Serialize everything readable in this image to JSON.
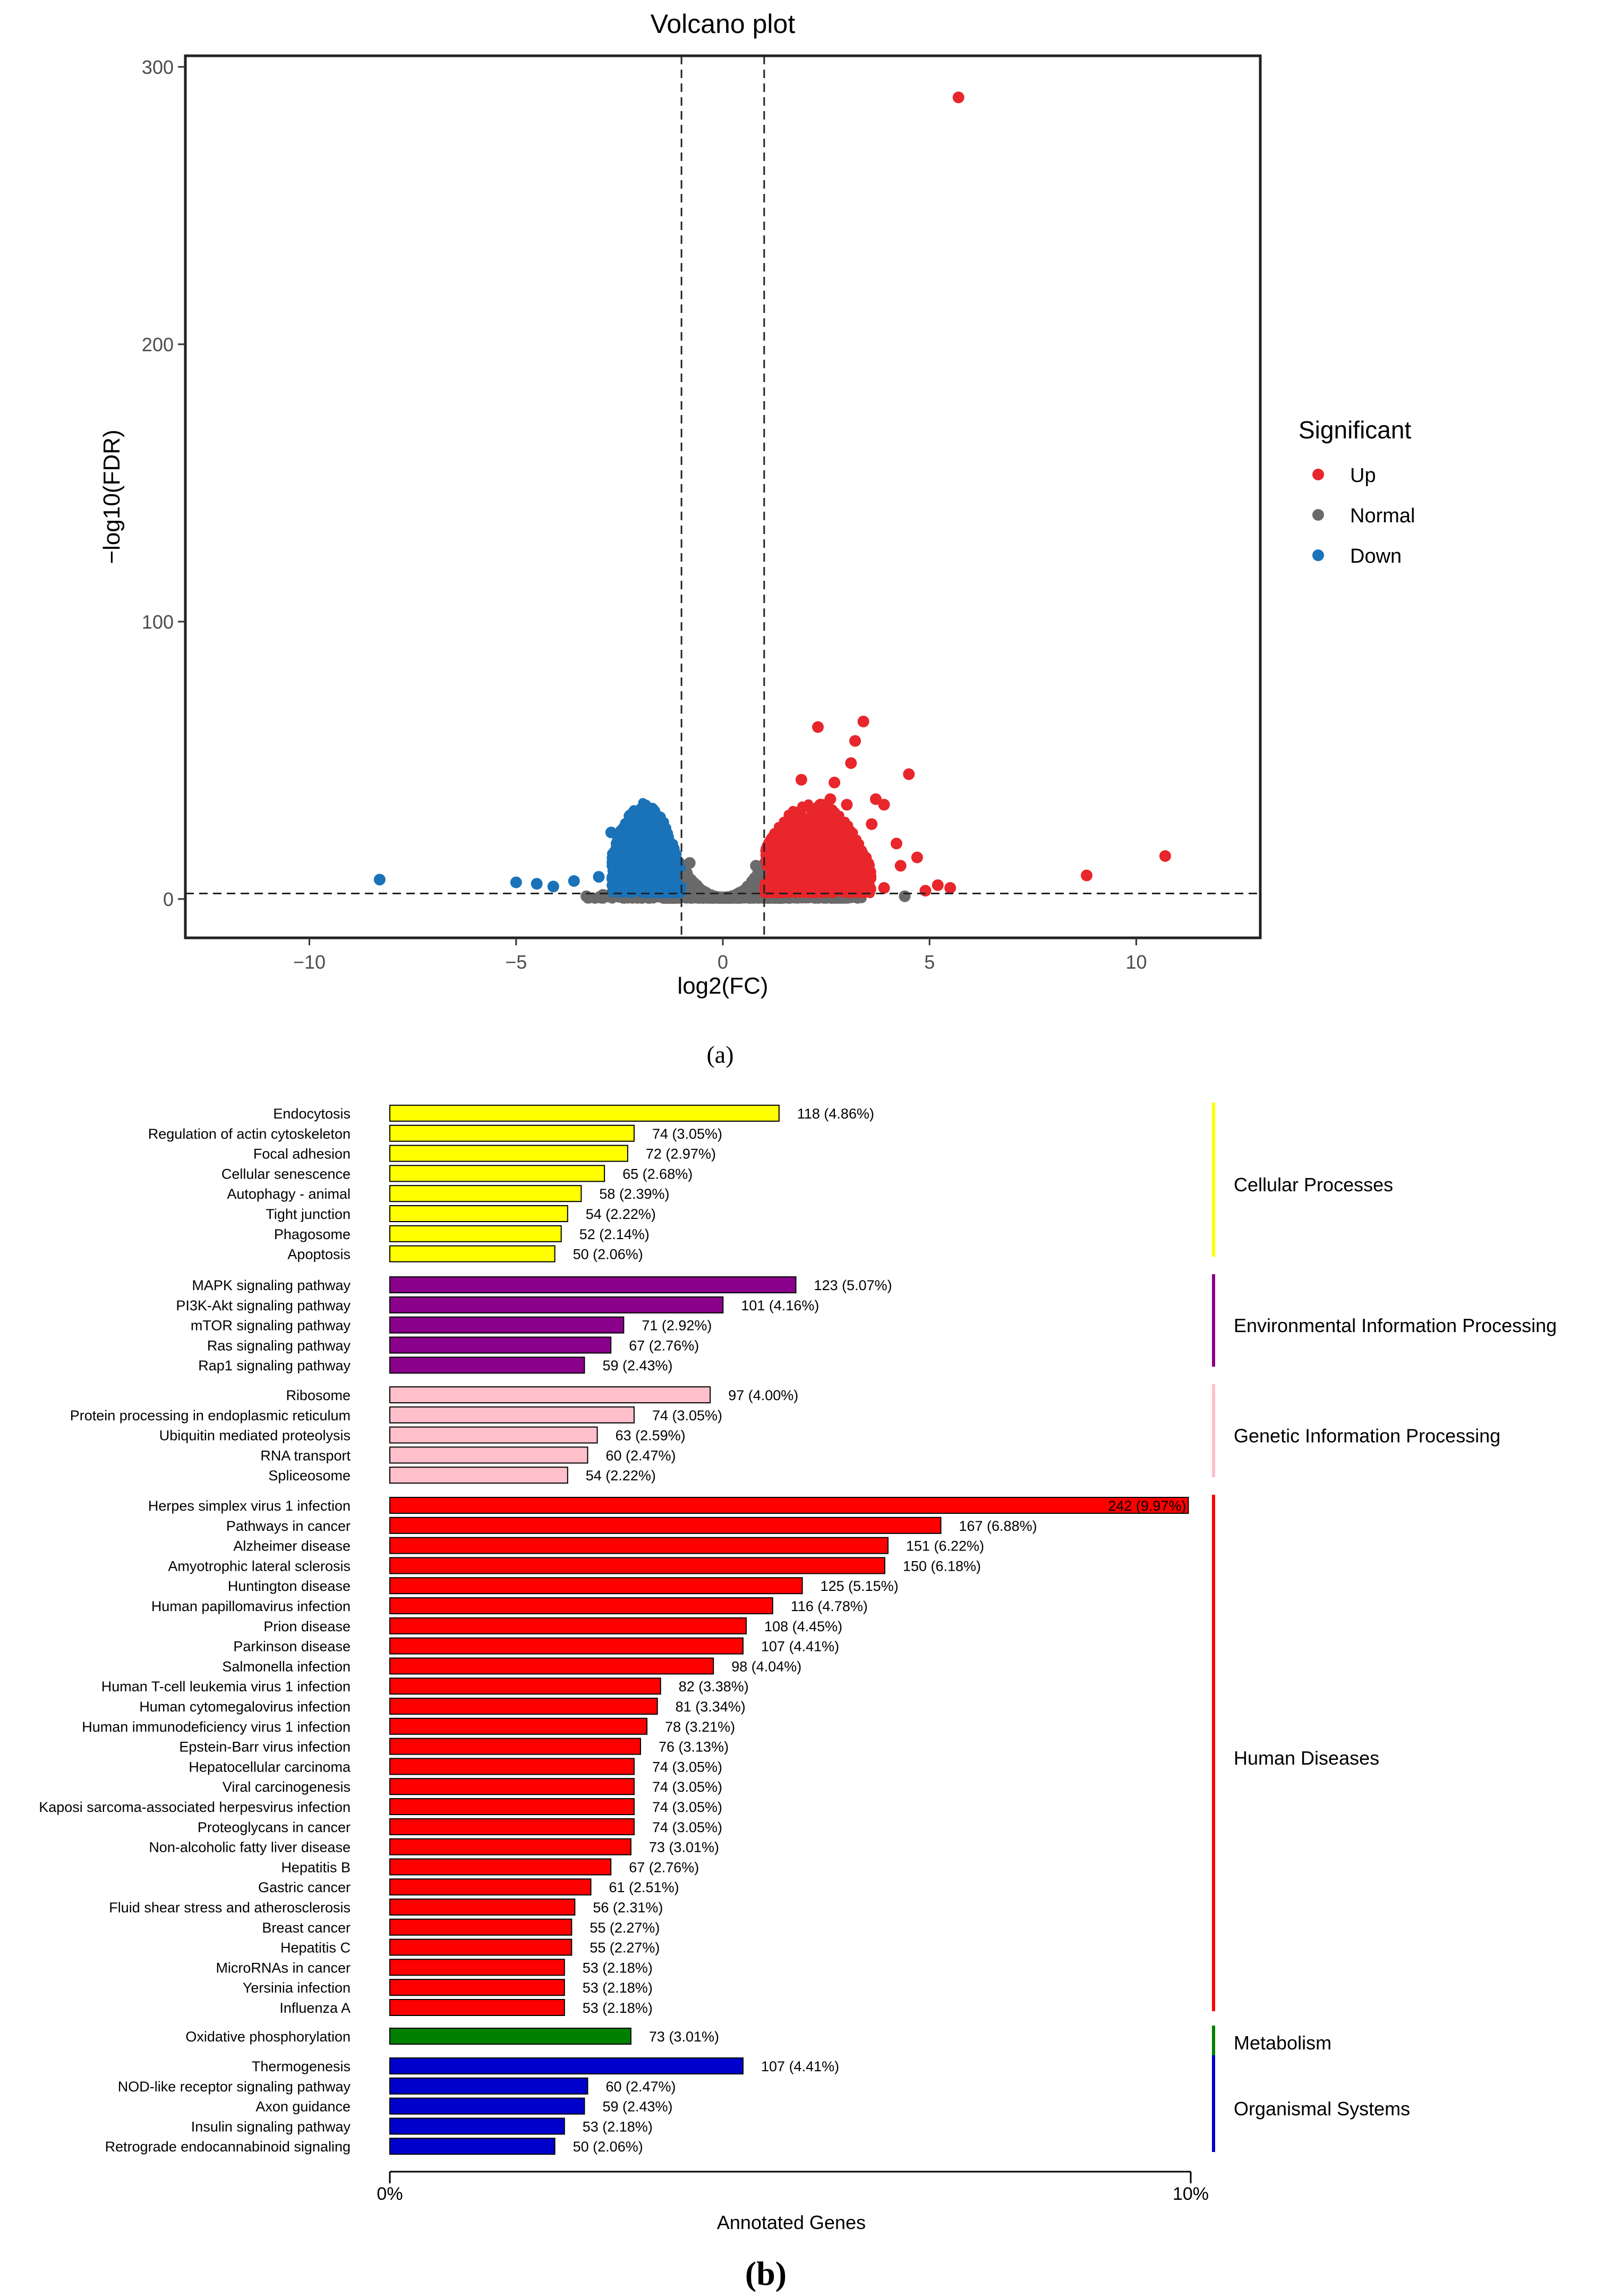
{
  "panel_a_label": "(a)",
  "panel_b_label": "(b)",
  "colors": {
    "up": "#e8262b",
    "normal": "#6a6a6a",
    "down": "#1a72b8",
    "Cellular Processes": "#ffff00",
    "Environmental Information Processing": "#8b008b",
    "Genetic Information Processing": "#ffc0cb",
    "Human Diseases": "#ff0000",
    "Metabolism": "#008000",
    "Organismal Systems": "#0000cd"
  },
  "chart_data": [
    {
      "type": "scatter",
      "title": "Volcano plot",
      "xlabel": "log2(FC)",
      "ylabel": "−log10(FDR)",
      "xlim": [
        -13,
        13
      ],
      "ylim": [
        -14,
        304
      ],
      "xticks": [
        -10,
        -5,
        0,
        5,
        10
      ],
      "xtick_labels": [
        "−10",
        "−5",
        "0",
        "5",
        "10"
      ],
      "yticks": [
        0,
        100,
        200,
        300
      ],
      "ytick_labels": [
        "0",
        "100",
        "200",
        "300"
      ],
      "grid": false,
      "thresholds": {
        "log2fc": [
          -1,
          1
        ],
        "neg_log10_fdr": 2
      },
      "legend": {
        "title": "Significant",
        "position": "right",
        "entries": [
          "Up",
          "Normal",
          "Down"
        ]
      },
      "series": [
        {
          "name": "Up",
          "points": [
            [
              5.7,
              289
            ],
            [
              10.7,
              15.5
            ],
            [
              8.8,
              8.5
            ],
            [
              3.4,
              64
            ],
            [
              2.3,
              62
            ],
            [
              3.2,
              57
            ],
            [
              4.5,
              45
            ],
            [
              3.1,
              49
            ],
            [
              1.9,
              43
            ],
            [
              2.7,
              42
            ],
            [
              3.7,
              36
            ],
            [
              2.6,
              36
            ],
            [
              3.0,
              34
            ],
            [
              3.9,
              34
            ],
            [
              3.6,
              27
            ],
            [
              4.2,
              20
            ],
            [
              4.7,
              15
            ],
            [
              4.3,
              12
            ],
            [
              5.2,
              5
            ],
            [
              5.5,
              4
            ],
            [
              4.9,
              3
            ],
            [
              3.9,
              4
            ]
          ]
        },
        {
          "name": "Normal",
          "points": [
            [
              -3.3,
              1
            ],
            [
              -2.9,
              1.5
            ],
            [
              4.4,
              1
            ],
            [
              0.0,
              0.5
            ],
            [
              -0.5,
              3
            ],
            [
              0.5,
              3
            ],
            [
              -0.9,
              8
            ],
            [
              0.9,
              9
            ],
            [
              -0.8,
              13
            ],
            [
              0.8,
              12
            ]
          ]
        },
        {
          "name": "Down",
          "points": [
            [
              -8.3,
              7
            ],
            [
              -5.0,
              6
            ],
            [
              -4.5,
              5.5
            ],
            [
              -3.6,
              6.5
            ],
            [
              -4.1,
              4.5
            ],
            [
              -2.7,
              24
            ],
            [
              -2.4,
              12
            ],
            [
              -3.0,
              8
            ],
            [
              -2.5,
              15
            ],
            [
              -2.2,
              18
            ]
          ]
        }
      ]
    },
    {
      "type": "bar",
      "orientation": "horizontal",
      "xlabel": "Annotated Genes",
      "xlim": [
        0,
        10
      ],
      "xtick_labels": [
        "0%",
        "10%"
      ],
      "groups": [
        {
          "name": "Cellular Processes",
          "items": [
            {
              "label": "Endocytosis",
              "count": 118,
              "percent": 4.86,
              "text": "118 (4.86%)"
            },
            {
              "label": "Regulation of actin cytoskeleton",
              "count": 74,
              "percent": 3.05,
              "text": "74 (3.05%)"
            },
            {
              "label": "Focal adhesion",
              "count": 72,
              "percent": 2.97,
              "text": "72 (2.97%)"
            },
            {
              "label": "Cellular senescence",
              "count": 65,
              "percent": 2.68,
              "text": "65 (2.68%)"
            },
            {
              "label": "Autophagy - animal",
              "count": 58,
              "percent": 2.39,
              "text": "58 (2.39%)"
            },
            {
              "label": "Tight junction",
              "count": 54,
              "percent": 2.22,
              "text": "54 (2.22%)"
            },
            {
              "label": "Phagosome",
              "count": 52,
              "percent": 2.14,
              "text": "52 (2.14%)"
            },
            {
              "label": "Apoptosis",
              "count": 50,
              "percent": 2.06,
              "text": "50 (2.06%)"
            }
          ]
        },
        {
          "name": "Environmental Information Processing",
          "items": [
            {
              "label": "MAPK signaling pathway",
              "count": 123,
              "percent": 5.07,
              "text": "123 (5.07%)"
            },
            {
              "label": "PI3K-Akt signaling pathway",
              "count": 101,
              "percent": 4.16,
              "text": "101 (4.16%)"
            },
            {
              "label": "mTOR signaling pathway",
              "count": 71,
              "percent": 2.92,
              "text": "71 (2.92%)"
            },
            {
              "label": "Ras signaling pathway",
              "count": 67,
              "percent": 2.76,
              "text": "67 (2.76%)"
            },
            {
              "label": "Rap1 signaling pathway",
              "count": 59,
              "percent": 2.43,
              "text": "59 (2.43%)"
            }
          ]
        },
        {
          "name": "Genetic Information Processing",
          "items": [
            {
              "label": "Ribosome",
              "count": 97,
              "percent": 4.0,
              "text": "97 (4.00%)"
            },
            {
              "label": "Protein processing in endoplasmic reticulum",
              "count": 74,
              "percent": 3.05,
              "text": "74 (3.05%)"
            },
            {
              "label": "Ubiquitin mediated proteolysis",
              "count": 63,
              "percent": 2.59,
              "text": "63 (2.59%)"
            },
            {
              "label": "RNA transport",
              "count": 60,
              "percent": 2.47,
              "text": "60 (2.47%)"
            },
            {
              "label": "Spliceosome",
              "count": 54,
              "percent": 2.22,
              "text": "54 (2.22%)"
            }
          ]
        },
        {
          "name": "Human Diseases",
          "items": [
            {
              "label": "Herpes simplex virus 1 infection",
              "count": 242,
              "percent": 9.97,
              "text": "242 (9.97%)"
            },
            {
              "label": "Pathways in cancer",
              "count": 167,
              "percent": 6.88,
              "text": "167 (6.88%)"
            },
            {
              "label": "Alzheimer disease",
              "count": 151,
              "percent": 6.22,
              "text": "151 (6.22%)"
            },
            {
              "label": "Amyotrophic lateral sclerosis",
              "count": 150,
              "percent": 6.18,
              "text": "150 (6.18%)"
            },
            {
              "label": "Huntington disease",
              "count": 125,
              "percent": 5.15,
              "text": "125 (5.15%)"
            },
            {
              "label": "Human papillomavirus infection",
              "count": 116,
              "percent": 4.78,
              "text": "116 (4.78%)"
            },
            {
              "label": "Prion disease",
              "count": 108,
              "percent": 4.45,
              "text": "108 (4.45%)"
            },
            {
              "label": "Parkinson disease",
              "count": 107,
              "percent": 4.41,
              "text": "107 (4.41%)"
            },
            {
              "label": "Salmonella infection",
              "count": 98,
              "percent": 4.04,
              "text": "98 (4.04%)"
            },
            {
              "label": "Human T-cell leukemia virus 1 infection",
              "count": 82,
              "percent": 3.38,
              "text": "82 (3.38%)"
            },
            {
              "label": "Human cytomegalovirus infection",
              "count": 81,
              "percent": 3.34,
              "text": "81 (3.34%)"
            },
            {
              "label": "Human immunodeficiency virus 1 infection",
              "count": 78,
              "percent": 3.21,
              "text": "78 (3.21%)"
            },
            {
              "label": "Epstein-Barr virus infection",
              "count": 76,
              "percent": 3.13,
              "text": "76 (3.13%)"
            },
            {
              "label": "Hepatocellular carcinoma",
              "count": 74,
              "percent": 3.05,
              "text": "74 (3.05%)"
            },
            {
              "label": "Viral carcinogenesis",
              "count": 74,
              "percent": 3.05,
              "text": "74 (3.05%)"
            },
            {
              "label": "Kaposi sarcoma-associated herpesvirus infection",
              "count": 74,
              "percent": 3.05,
              "text": "74 (3.05%)"
            },
            {
              "label": "Proteoglycans in cancer",
              "count": 74,
              "percent": 3.05,
              "text": "74 (3.05%)"
            },
            {
              "label": "Non-alcoholic fatty liver disease",
              "count": 73,
              "percent": 3.01,
              "text": "73 (3.01%)"
            },
            {
              "label": "Hepatitis B",
              "count": 67,
              "percent": 2.76,
              "text": "67 (2.76%)"
            },
            {
              "label": "Gastric cancer",
              "count": 61,
              "percent": 2.51,
              "text": "61 (2.51%)"
            },
            {
              "label": "Fluid shear stress and atherosclerosis",
              "count": 56,
              "percent": 2.31,
              "text": "56 (2.31%)"
            },
            {
              "label": "Breast cancer",
              "count": 55,
              "percent": 2.27,
              "text": "55 (2.27%)"
            },
            {
              "label": "Hepatitis C",
              "count": 55,
              "percent": 2.27,
              "text": "55 (2.27%)"
            },
            {
              "label": "MicroRNAs in cancer",
              "count": 53,
              "percent": 2.18,
              "text": "53 (2.18%)"
            },
            {
              "label": "Yersinia infection",
              "count": 53,
              "percent": 2.18,
              "text": "53 (2.18%)"
            },
            {
              "label": "Influenza A",
              "count": 53,
              "percent": 2.18,
              "text": "53 (2.18%)"
            }
          ]
        },
        {
          "name": "Metabolism",
          "items": [
            {
              "label": "Oxidative phosphorylation",
              "count": 73,
              "percent": 3.01,
              "text": "73 (3.01%)"
            }
          ]
        },
        {
          "name": "Organismal Systems",
          "items": [
            {
              "label": "Thermogenesis",
              "count": 107,
              "percent": 4.41,
              "text": "107 (4.41%)"
            },
            {
              "label": "NOD-like receptor signaling pathway",
              "count": 60,
              "percent": 2.47,
              "text": "60 (2.47%)"
            },
            {
              "label": "Axon guidance",
              "count": 59,
              "percent": 2.43,
              "text": "59 (2.43%)"
            },
            {
              "label": "Insulin signaling pathway",
              "count": 53,
              "percent": 2.18,
              "text": "53 (2.18%)"
            },
            {
              "label": "Retrograde endocannabinoid signaling",
              "count": 50,
              "percent": 2.06,
              "text": "50 (2.06%)"
            }
          ]
        }
      ]
    }
  ]
}
